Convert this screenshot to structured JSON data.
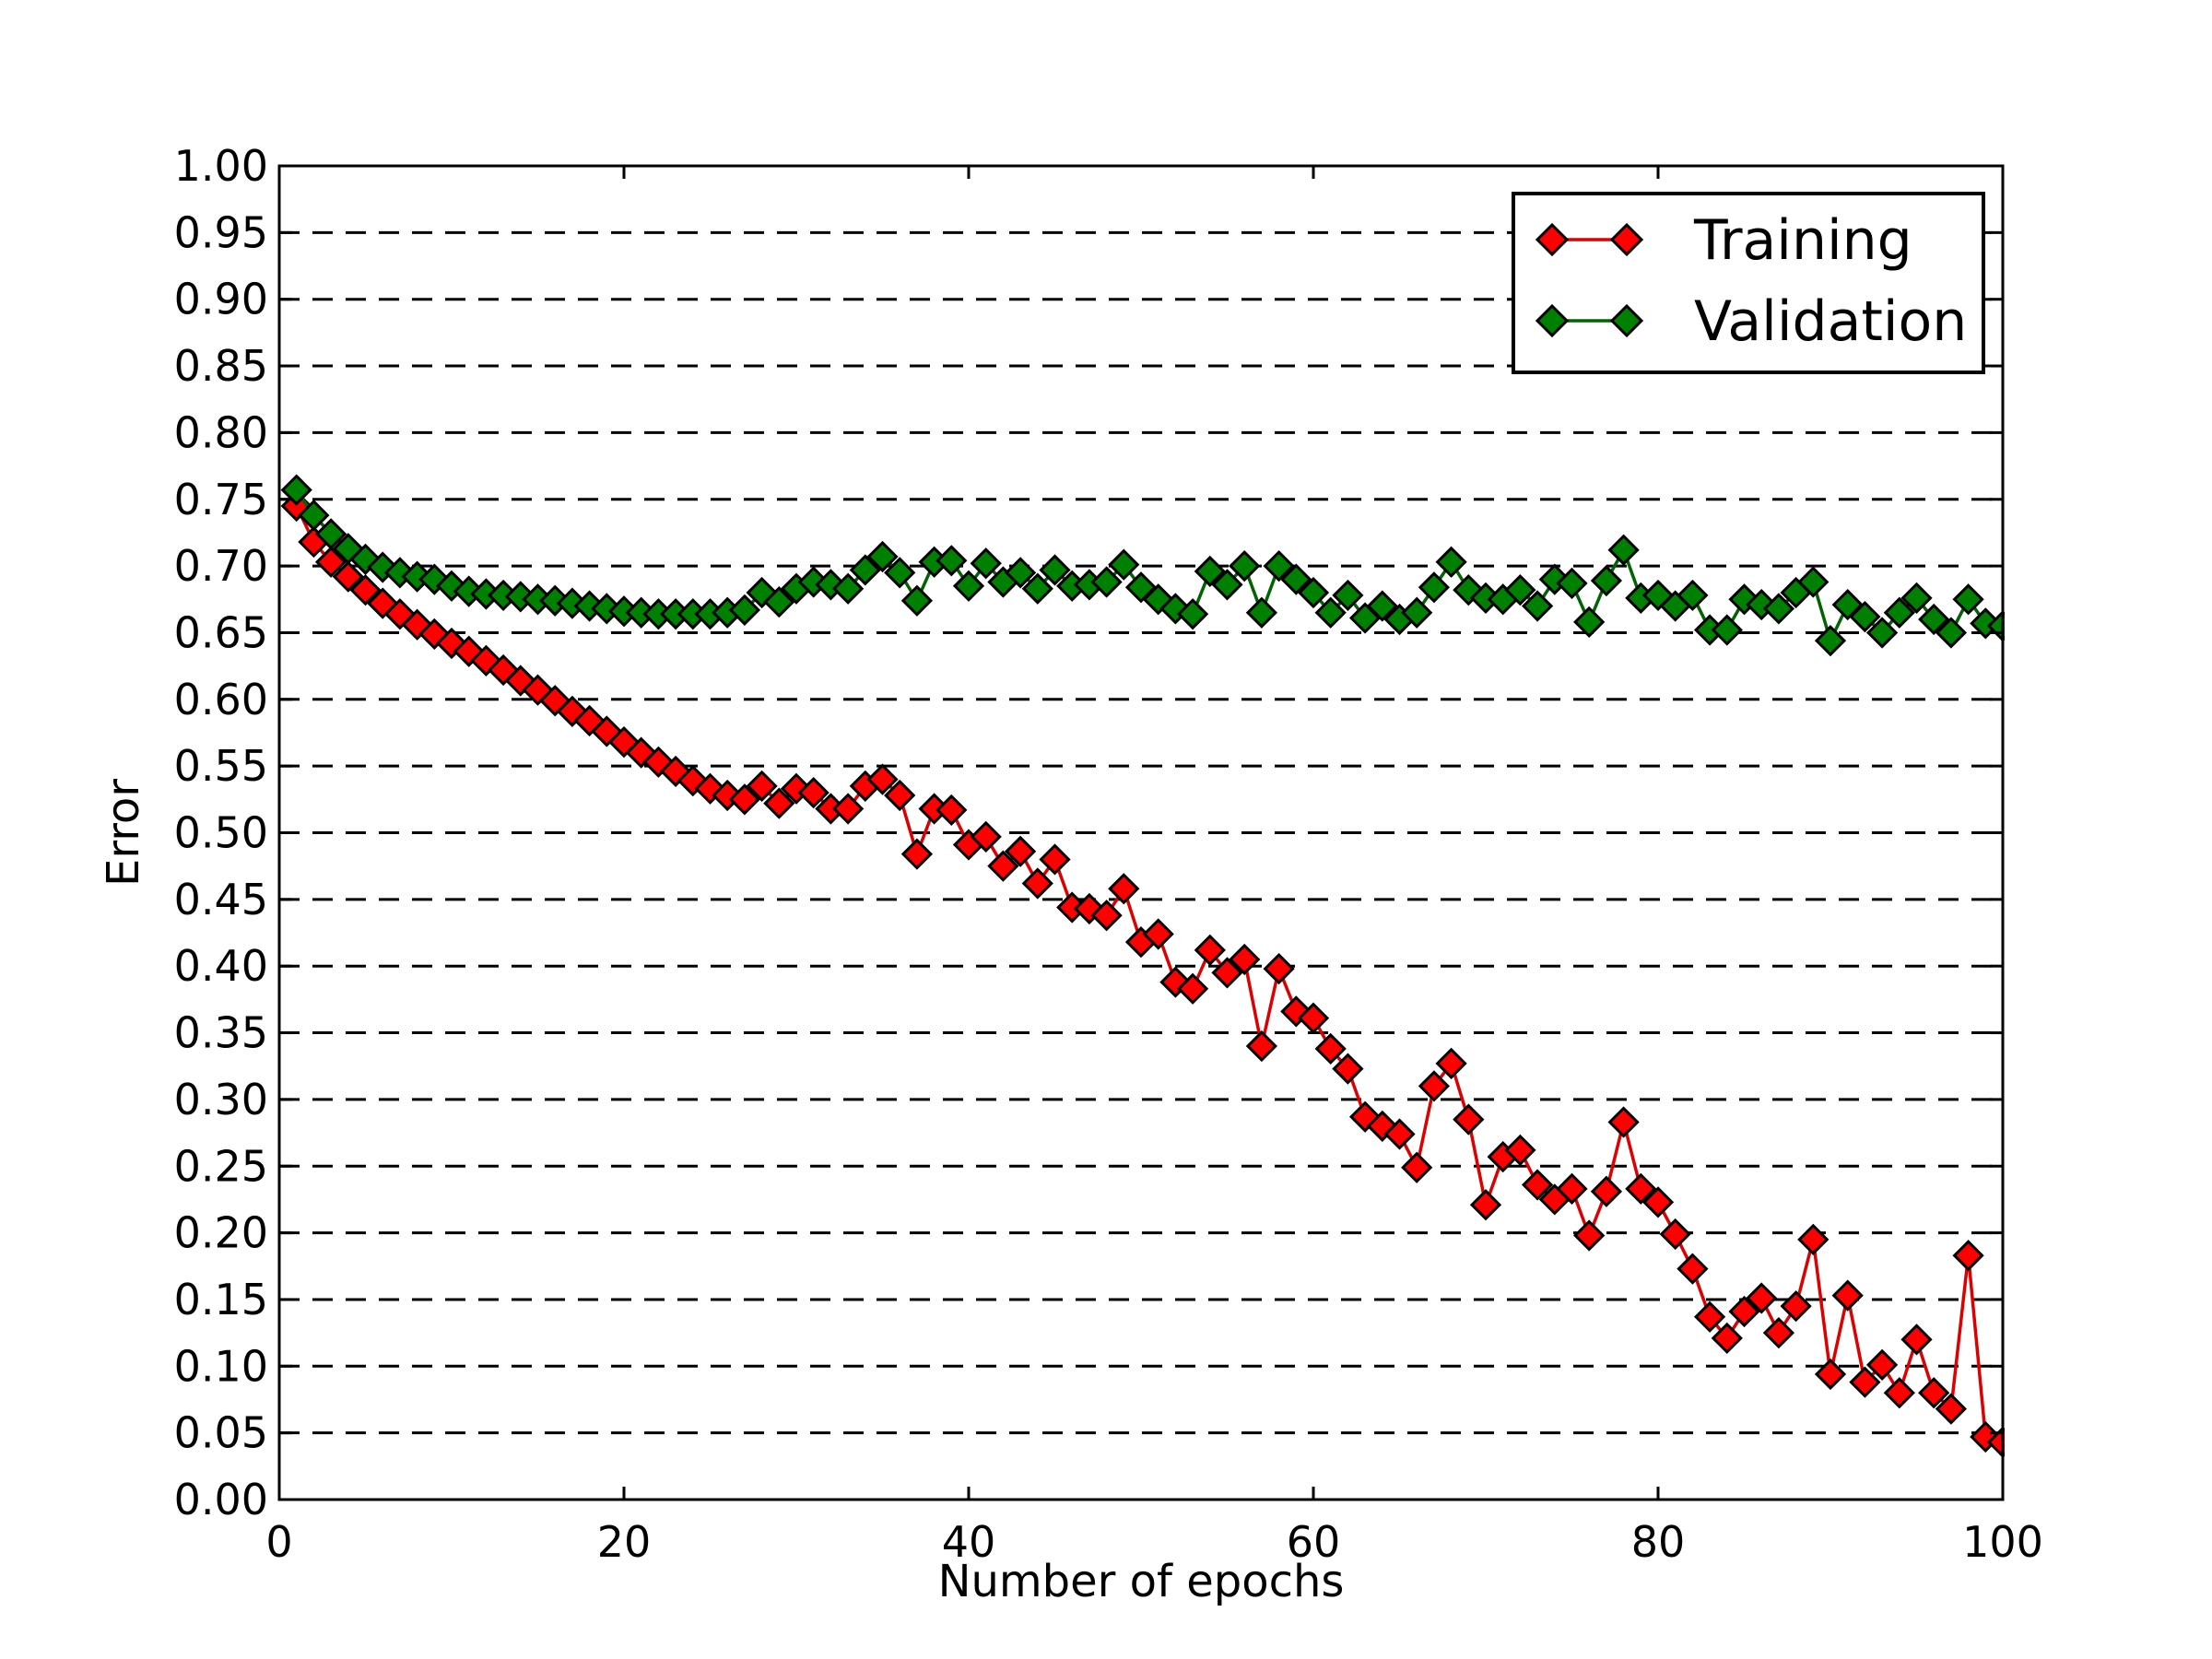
{
  "chart_data": {
    "type": "line",
    "title": "",
    "xlabel": "Number of epochs",
    "ylabel": "Error",
    "xlim": [
      0,
      100
    ],
    "ylim": [
      0,
      1
    ],
    "xticks": [
      "0",
      "20",
      "40",
      "60",
      "80",
      "100"
    ],
    "yticks": [
      "0.00",
      "0.05",
      "0.10",
      "0.15",
      "0.20",
      "0.25",
      "0.30",
      "0.35",
      "0.40",
      "0.45",
      "0.50",
      "0.55",
      "0.60",
      "0.65",
      "0.70",
      "0.75",
      "0.80",
      "0.85",
      "0.90",
      "0.95",
      "1.00"
    ],
    "grid": "horizontal dashed",
    "legend_position": "top-right",
    "series": [
      {
        "name": "Training",
        "color": "#ff0000",
        "line_color": "#dd0000",
        "marker": "diamond",
        "x": [
          1,
          2,
          3,
          4,
          5,
          6,
          7,
          8,
          9,
          10,
          11,
          12,
          13,
          14,
          15,
          16,
          17,
          18,
          19,
          20,
          21,
          22,
          23,
          24,
          25,
          26,
          27,
          28,
          29,
          30,
          31,
          32,
          33,
          34,
          35,
          36,
          37,
          38,
          39,
          40,
          41,
          42,
          43,
          44,
          45,
          46,
          47,
          48,
          49,
          50,
          51,
          52,
          53,
          54,
          55,
          56,
          57,
          58,
          59,
          60,
          61,
          62,
          63,
          64,
          65,
          66,
          67,
          68,
          69,
          70,
          71,
          72,
          73,
          74,
          75,
          76,
          77,
          78,
          79,
          80,
          81,
          82,
          83,
          84,
          85,
          86,
          87,
          88,
          89,
          90,
          91,
          92,
          93,
          94,
          95,
          96,
          97,
          98,
          99,
          100
        ],
        "y": [
          0.745,
          0.718,
          0.703,
          0.692,
          0.682,
          0.672,
          0.664,
          0.656,
          0.649,
          0.642,
          0.636,
          0.629,
          0.622,
          0.614,
          0.607,
          0.599,
          0.591,
          0.584,
          0.576,
          0.568,
          0.56,
          0.553,
          0.546,
          0.539,
          0.533,
          0.528,
          0.525,
          0.535,
          0.522,
          0.533,
          0.53,
          0.518,
          0.518,
          0.535,
          0.54,
          0.528,
          0.484,
          0.518,
          0.517,
          0.491,
          0.497,
          0.475,
          0.486,
          0.462,
          0.48,
          0.444,
          0.443,
          0.438,
          0.458,
          0.418,
          0.424,
          0.388,
          0.383,
          0.412,
          0.395,
          0.405,
          0.34,
          0.398,
          0.366,
          0.361,
          0.338,
          0.323,
          0.287,
          0.28,
          0.274,
          0.249,
          0.31,
          0.327,
          0.285,
          0.221,
          0.257,
          0.262,
          0.236,
          0.225,
          0.233,
          0.198,
          0.231,
          0.283,
          0.233,
          0.223,
          0.199,
          0.173,
          0.137,
          0.121,
          0.141,
          0.151,
          0.125,
          0.145,
          0.195,
          0.094,
          0.153,
          0.088,
          0.101,
          0.08,
          0.12,
          0.08,
          0.068,
          0.183,
          0.047,
          0.043
        ]
      },
      {
        "name": "Validation",
        "color": "#008000",
        "line_color": "#006400",
        "marker": "diamond",
        "x": [
          1,
          2,
          3,
          4,
          5,
          6,
          7,
          8,
          9,
          10,
          11,
          12,
          13,
          14,
          15,
          16,
          17,
          18,
          19,
          20,
          21,
          22,
          23,
          24,
          25,
          26,
          27,
          28,
          29,
          30,
          31,
          32,
          33,
          34,
          35,
          36,
          37,
          38,
          39,
          40,
          41,
          42,
          43,
          44,
          45,
          46,
          47,
          48,
          49,
          50,
          51,
          52,
          53,
          54,
          55,
          56,
          57,
          58,
          59,
          60,
          61,
          62,
          63,
          64,
          65,
          66,
          67,
          68,
          69,
          70,
          71,
          72,
          73,
          74,
          75,
          76,
          77,
          78,
          79,
          80,
          81,
          82,
          83,
          84,
          85,
          86,
          87,
          88,
          89,
          90,
          91,
          92,
          93,
          94,
          95,
          96,
          97,
          98,
          99,
          100
        ],
        "y": [
          0.757,
          0.738,
          0.724,
          0.713,
          0.705,
          0.699,
          0.695,
          0.692,
          0.69,
          0.685,
          0.681,
          0.679,
          0.678,
          0.677,
          0.675,
          0.674,
          0.672,
          0.67,
          0.668,
          0.666,
          0.665,
          0.664,
          0.664,
          0.664,
          0.664,
          0.665,
          0.667,
          0.68,
          0.673,
          0.683,
          0.688,
          0.686,
          0.683,
          0.697,
          0.707,
          0.695,
          0.674,
          0.703,
          0.704,
          0.685,
          0.702,
          0.688,
          0.695,
          0.683,
          0.697,
          0.685,
          0.686,
          0.688,
          0.701,
          0.684,
          0.675,
          0.668,
          0.664,
          0.696,
          0.686,
          0.7,
          0.665,
          0.7,
          0.69,
          0.68,
          0.665,
          0.678,
          0.661,
          0.67,
          0.66,
          0.665,
          0.684,
          0.703,
          0.682,
          0.676,
          0.675,
          0.682,
          0.67,
          0.69,
          0.687,
          0.658,
          0.689,
          0.712,
          0.676,
          0.678,
          0.67,
          0.678,
          0.652,
          0.652,
          0.675,
          0.671,
          0.668,
          0.68,
          0.688,
          0.644,
          0.671,
          0.662,
          0.65,
          0.665,
          0.676,
          0.66,
          0.65,
          0.675,
          0.657,
          0.655
        ]
      }
    ]
  }
}
